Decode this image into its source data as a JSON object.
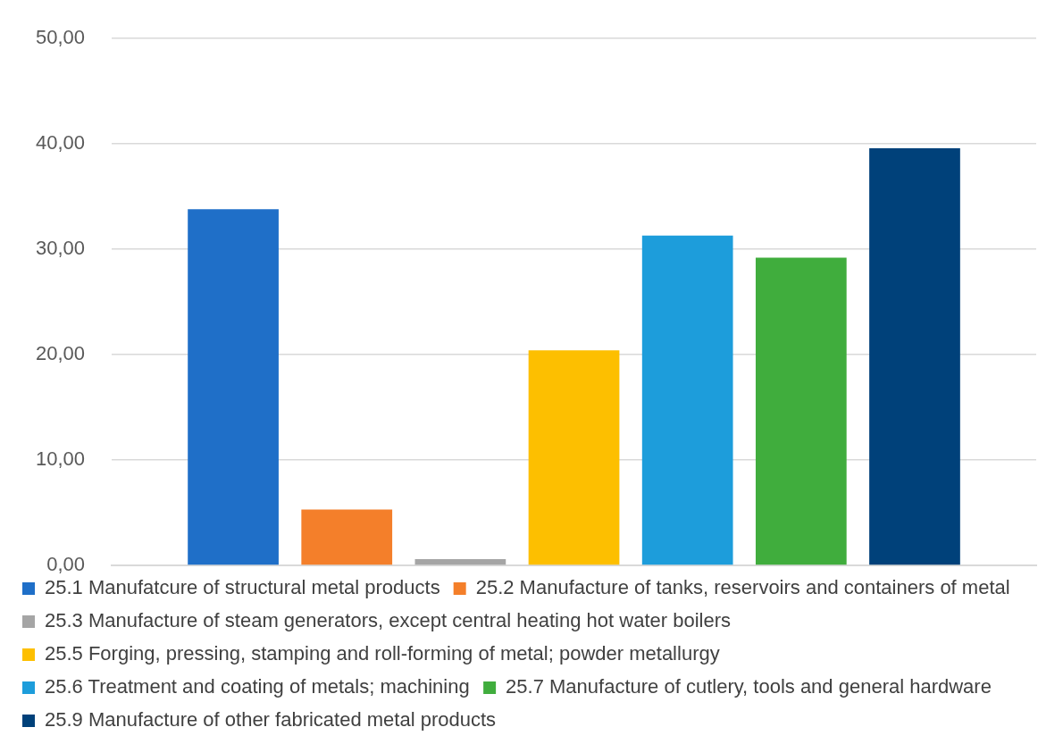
{
  "chart_data": {
    "type": "bar",
    "categories": [
      null
    ],
    "series": [
      {
        "name": "25.1 Manufatcure of structural metal products",
        "color": "#1f6fc8",
        "values": [
          33.8
        ]
      },
      {
        "name": "25.2 Manufacture of tanks, reservoirs and containers of metal",
        "color": "#f47f2a",
        "values": [
          5.3
        ]
      },
      {
        "name": "25.3 Manufacture of steam generators, except central heating hot water boilers",
        "color": "#a5a5a5",
        "values": [
          0.6
        ]
      },
      {
        "name": "25.5 Forging, pressing, stamping and roll-forming of metal; powder metallurgy",
        "color": "#fdbf00",
        "values": [
          20.4
        ]
      },
      {
        "name": "25.6 Treatment and coating of metals; machining",
        "color": "#1d9ddb",
        "values": [
          31.3
        ]
      },
      {
        "name": "25.7 Manufacture of cutlery, tools and general hardware",
        "color": "#40ad3d",
        "values": [
          29.2
        ]
      },
      {
        "name": "25.9 Manufacture of other fabricated metal products",
        "color": "#00417a",
        "values": [
          39.6
        ]
      }
    ],
    "ylim": [
      0,
      50
    ],
    "yticks": [
      {
        "value": 0,
        "label": "0,00"
      },
      {
        "value": 10,
        "label": "10,00"
      },
      {
        "value": 20,
        "label": "20,00"
      },
      {
        "value": 30,
        "label": "30,00"
      },
      {
        "value": 40,
        "label": "40,00"
      },
      {
        "value": 50,
        "label": "50,00"
      }
    ],
    "grid": "y",
    "legend": "bottom"
  }
}
